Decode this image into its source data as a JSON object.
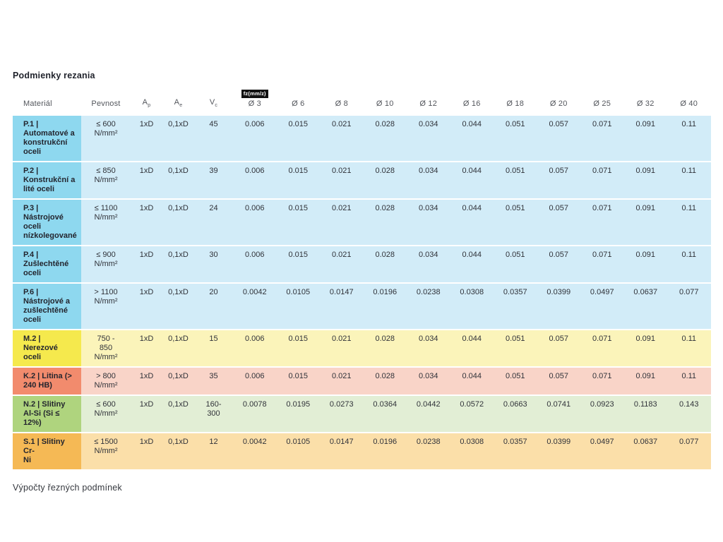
{
  "title": "Podmienky rezania",
  "footer": "Výpočty řezných podmínek",
  "table": {
    "columns": {
      "material": "Materiál",
      "pevnost": "Pevnost",
      "param_cols": [
        {
          "base": "A",
          "sub": "p"
        },
        {
          "base": "A",
          "sub": "e"
        },
        {
          "base": "V",
          "sub": "c"
        }
      ],
      "fz_badge": "fz(mm/z)",
      "diameters": [
        "Ø 3",
        "Ø 6",
        "Ø 8",
        "Ø 10",
        "Ø 12",
        "Ø 16",
        "Ø 18",
        "Ø 20",
        "Ø 25",
        "Ø 32",
        "Ø 40"
      ]
    },
    "palette": {
      "P": {
        "head": "#8ed8ef",
        "body": "#d2ecf8"
      },
      "M": {
        "head": "#f5e94d",
        "body": "#fbf4ba"
      },
      "K": {
        "head": "#f28b6d",
        "body": "#f9d4c8"
      },
      "N": {
        "head": "#afd47e",
        "body": "#e2eed5"
      },
      "S": {
        "head": "#f5b955",
        "body": "#fbdfa9"
      }
    },
    "rows": [
      {
        "group": "P",
        "material": "P.1 |\nAutomatové a\nkonstrukční\noceli",
        "pevnost": "≤ 600\nN/mm²",
        "ap": "1xD",
        "ae": "0,1xD",
        "vc": "45",
        "fz": [
          "0.006",
          "0.015",
          "0.021",
          "0.028",
          "0.034",
          "0.044",
          "0.051",
          "0.057",
          "0.071",
          "0.091",
          "0.11"
        ]
      },
      {
        "group": "P",
        "material": "P.2 |\nKonstrukční a\nlité oceli",
        "pevnost": "≤ 850\nN/mm²",
        "ap": "1xD",
        "ae": "0,1xD",
        "vc": "39",
        "fz": [
          "0.006",
          "0.015",
          "0.021",
          "0.028",
          "0.034",
          "0.044",
          "0.051",
          "0.057",
          "0.071",
          "0.091",
          "0.11"
        ]
      },
      {
        "group": "P",
        "material": "P.3 |\nNástrojové\noceli\nnízkolegované",
        "pevnost": "≤ 1100\nN/mm²",
        "ap": "1xD",
        "ae": "0,1xD",
        "vc": "24",
        "fz": [
          "0.006",
          "0.015",
          "0.021",
          "0.028",
          "0.034",
          "0.044",
          "0.051",
          "0.057",
          "0.071",
          "0.091",
          "0.11"
        ]
      },
      {
        "group": "P",
        "material": "P.4 |\nZušlechtěné\noceli",
        "pevnost": "≤ 900\nN/mm²",
        "ap": "1xD",
        "ae": "0,1xD",
        "vc": "30",
        "fz": [
          "0.006",
          "0.015",
          "0.021",
          "0.028",
          "0.034",
          "0.044",
          "0.051",
          "0.057",
          "0.071",
          "0.091",
          "0.11"
        ]
      },
      {
        "group": "P",
        "material": "P.6 |\nNástrojové a\nzušlechtěné\noceli",
        "pevnost": "> 1100\nN/mm²",
        "ap": "1xD",
        "ae": "0,1xD",
        "vc": "20",
        "fz": [
          "0.0042",
          "0.0105",
          "0.0147",
          "0.0196",
          "0.0238",
          "0.0308",
          "0.0357",
          "0.0399",
          "0.0497",
          "0.0637",
          "0.077"
        ]
      },
      {
        "group": "M",
        "material": "M.2 |\nNerezové\noceli",
        "pevnost": "750 -\n850\nN/mm²",
        "ap": "1xD",
        "ae": "0,1xD",
        "vc": "15",
        "fz": [
          "0.006",
          "0.015",
          "0.021",
          "0.028",
          "0.034",
          "0.044",
          "0.051",
          "0.057",
          "0.071",
          "0.091",
          "0.11"
        ]
      },
      {
        "group": "K",
        "material": "K.2 | Litina (>\n240 HB)",
        "pevnost": "> 800\nN/mm²",
        "ap": "1xD",
        "ae": "0,1xD",
        "vc": "35",
        "fz": [
          "0.006",
          "0.015",
          "0.021",
          "0.028",
          "0.034",
          "0.044",
          "0.051",
          "0.057",
          "0.071",
          "0.091",
          "0.11"
        ]
      },
      {
        "group": "N",
        "material": "N.2 | Slitiny\nAl-Si (Si ≤\n12%)",
        "pevnost": "≤ 600\nN/mm²",
        "ap": "1xD",
        "ae": "0,1xD",
        "vc": "160-\n300",
        "fz": [
          "0.0078",
          "0.0195",
          "0.0273",
          "0.0364",
          "0.0442",
          "0.0572",
          "0.0663",
          "0.0741",
          "0.0923",
          "0.1183",
          "0.143"
        ]
      },
      {
        "group": "S",
        "material": "S.1 | Slitiny Cr-\nNi",
        "pevnost": "≤ 1500\nN/mm²",
        "ap": "1xD",
        "ae": "0,1xD",
        "vc": "12",
        "fz": [
          "0.0042",
          "0.0105",
          "0.0147",
          "0.0196",
          "0.0238",
          "0.0308",
          "0.0357",
          "0.0399",
          "0.0497",
          "0.0637",
          "0.077"
        ]
      }
    ]
  }
}
